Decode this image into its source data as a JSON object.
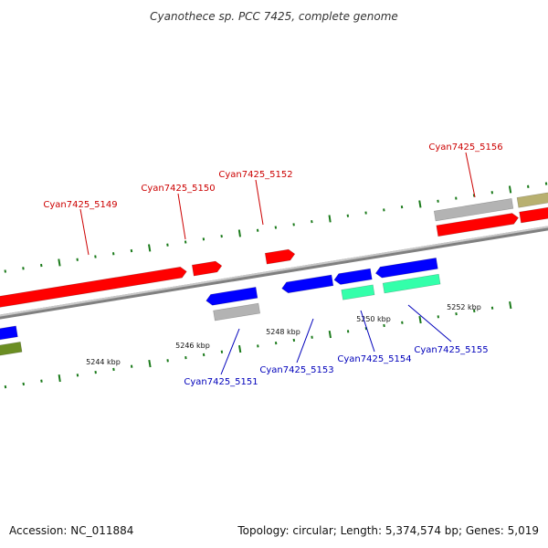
{
  "title": "Cyanothece sp. PCC 7425, complete genome",
  "footer": {
    "accession": "Accession: NC_011884",
    "summary": "Topology: circular; Length: 5,374,574 bp; Genes: 5,019"
  },
  "colors": {
    "forward_cds": "#ff0000",
    "reverse_cds": "#0000ff",
    "forward_other": "#b3b3b3",
    "reverse_other": "#33ffaa",
    "olive_feature": "#b8b070",
    "dark_olive_feature": "#6b8e23",
    "backbone": "#808080",
    "tick": "#1a7a1a",
    "forward_label": "#cc0000",
    "reverse_label": "#0000bb"
  },
  "scale_labels": [
    "5244 kbp",
    "5246 kbp",
    "5248 kbp",
    "5250 kbp",
    "5252 kbp"
  ],
  "forward_genes": [
    "Cyan7425_5149",
    "Cyan7425_5150",
    "Cyan7425_5152",
    "Cyan7425_5156"
  ],
  "reverse_genes": [
    "Cyan7425_5151",
    "Cyan7425_5153",
    "Cyan7425_5154",
    "Cyan7425_5155"
  ]
}
